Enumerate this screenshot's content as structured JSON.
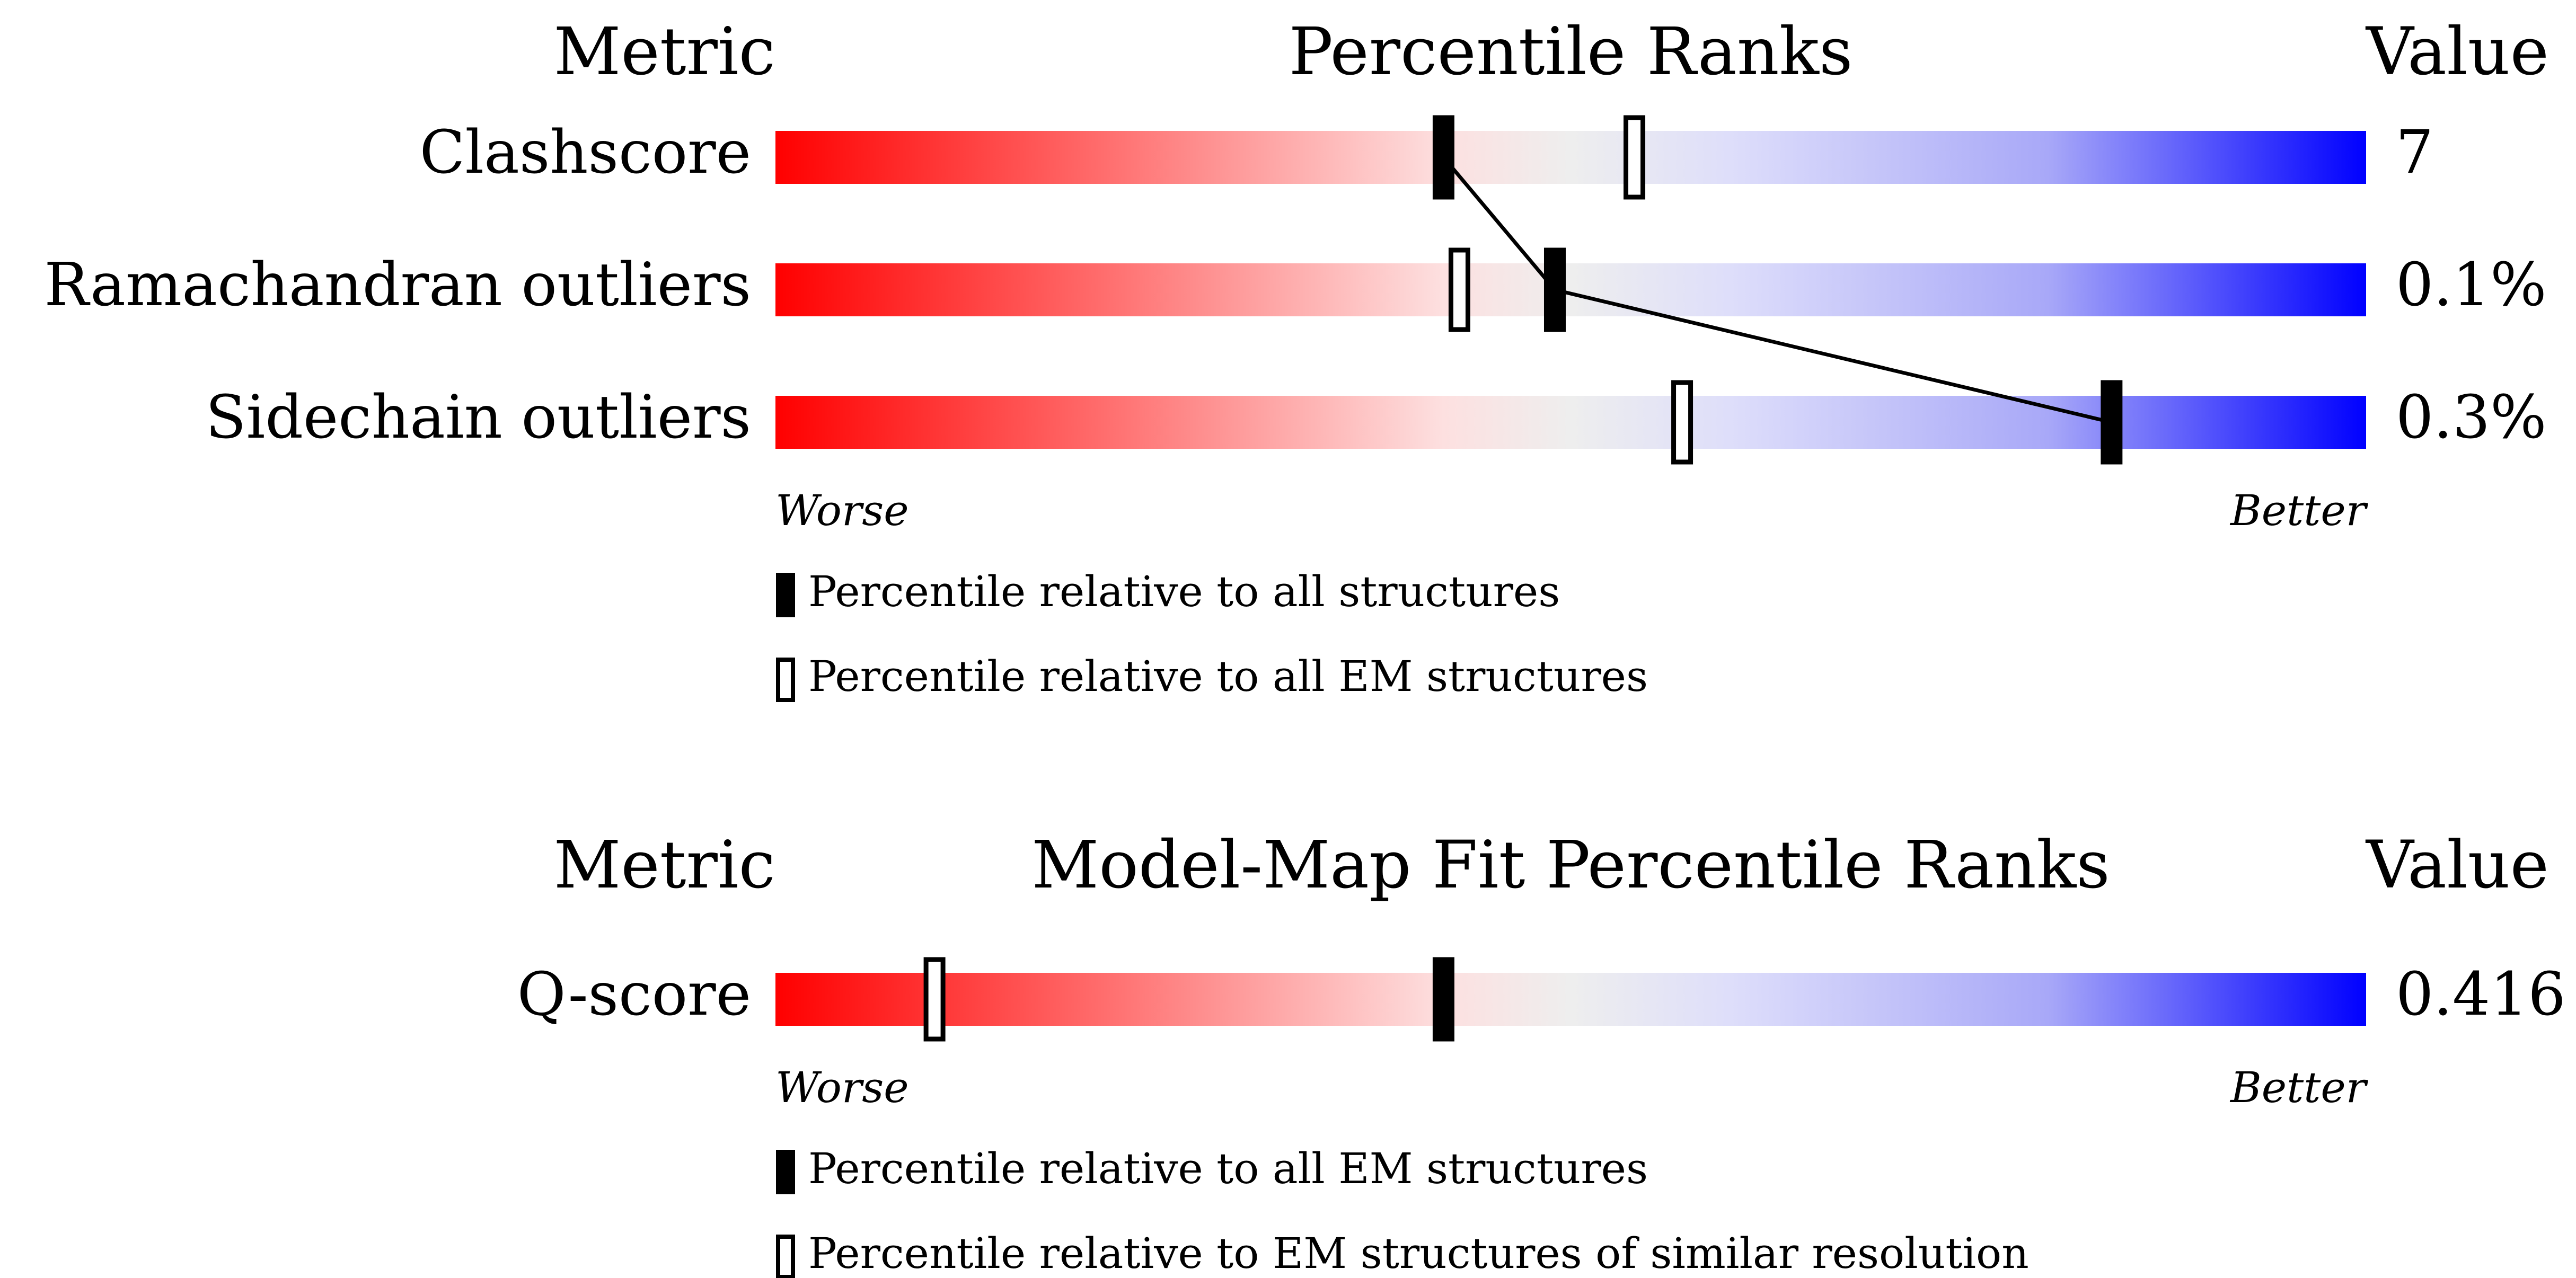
{
  "chart_data": [
    {
      "type": "percentile-slider",
      "metric_header": "Metric",
      "title": "Percentile Ranks",
      "value_header": "Value",
      "categories": [
        "Clashscore",
        "Ramachandran outliers",
        "Sidechain outliers"
      ],
      "metric_values": [
        "7",
        "0.1%",
        "0.3%"
      ],
      "xlim": [
        0,
        100
      ],
      "axis_labels": [
        "Worse",
        "Better"
      ],
      "series": [
        {
          "name": "Percentile relative to all structures",
          "color": "#000000",
          "values": [
            42,
            49,
            84
          ],
          "connected": true
        },
        {
          "name": "Percentile relative to all EM structures",
          "color": "#ffffff",
          "values": [
            54,
            43,
            57
          ],
          "connected": false
        }
      ]
    },
    {
      "type": "percentile-slider",
      "metric_header": "Metric",
      "title": "Model-Map Fit Percentile Ranks",
      "value_header": "Value",
      "categories": [
        "Q-score"
      ],
      "metric_values": [
        "0.416"
      ],
      "xlim": [
        0,
        100
      ],
      "axis_labels": [
        "Worse",
        "Better"
      ],
      "series": [
        {
          "name": "Percentile relative to all EM structures",
          "color": "#000000",
          "values": [
            42
          ],
          "connected": true
        },
        {
          "name": "Percentile relative to EM structures of similar resolution",
          "color": "#ffffff",
          "values": [
            10
          ],
          "connected": false
        }
      ]
    }
  ]
}
